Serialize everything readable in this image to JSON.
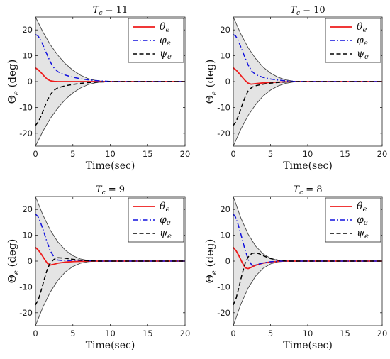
{
  "chart_data": [
    {
      "type": "line",
      "title": "T_c = 11",
      "title_var": "T",
      "title_sub": "c",
      "title_rest": "= 11",
      "xlabel": "Time(sec)",
      "ylabel": "Θe (deg)",
      "ylabel_main": "Θ",
      "ylabel_sub": "e",
      "ylabel_unit": "(deg)",
      "xlim": [
        0,
        20
      ],
      "ylim": [
        -25,
        25
      ],
      "xticks": [
        "0",
        "5",
        "10",
        "15",
        "20"
      ],
      "yticks": [
        "20",
        "10",
        "0",
        "-10",
        "-20"
      ],
      "envelope": {
        "upper": [
          [
            0,
            25
          ],
          [
            1,
            19.2
          ],
          [
            2,
            14.2
          ],
          [
            3,
            10.2
          ],
          [
            4,
            6.9
          ],
          [
            5,
            4.4
          ],
          [
            6,
            2.5
          ],
          [
            7,
            1.2
          ],
          [
            8,
            0.45
          ],
          [
            9,
            0.1
          ],
          [
            10,
            0.01
          ],
          [
            11,
            0
          ],
          [
            20,
            0
          ]
        ]
      },
      "legend": {
        "placement": "top-right",
        "entries": [
          "θe",
          "φe",
          "ψe"
        ]
      },
      "series": [
        {
          "name": "θe",
          "color": "#ee1c1c",
          "dash": "solid",
          "points": [
            [
              0,
              5.3
            ],
            [
              0.4,
              4.5
            ],
            [
              0.8,
              3.3
            ],
            [
              1.2,
              2.0
            ],
            [
              1.6,
              0.9
            ],
            [
              2.0,
              0.3
            ],
            [
              2.5,
              0.05
            ],
            [
              3.0,
              0
            ],
            [
              20,
              0
            ]
          ]
        },
        {
          "name": "φe",
          "color": "#1111dd",
          "dash": "dashdot",
          "points": [
            [
              0,
              18.2
            ],
            [
              0.3,
              17.8
            ],
            [
              0.6,
              16.6
            ],
            [
              1.0,
              14.2
            ],
            [
              1.5,
              10.8
            ],
            [
              2.0,
              7.5
            ],
            [
              2.5,
              5.2
            ],
            [
              3.0,
              3.8
            ],
            [
              4.0,
              2.5
            ],
            [
              5.0,
              1.7
            ],
            [
              6.0,
              1.1
            ],
            [
              7.0,
              0.7
            ],
            [
              8.0,
              0.4
            ],
            [
              9.0,
              0.2
            ],
            [
              10.0,
              0.05
            ],
            [
              11.0,
              0
            ],
            [
              20,
              0
            ]
          ]
        },
        {
          "name": "ψe",
          "color": "#000000",
          "dash": "dashed",
          "points": [
            [
              0,
              -17.0
            ],
            [
              0.4,
              -15.5
            ],
            [
              0.8,
              -13.0
            ],
            [
              1.2,
              -10.0
            ],
            [
              1.6,
              -7.2
            ],
            [
              2.0,
              -5.0
            ],
            [
              2.5,
              -3.3
            ],
            [
              3.0,
              -2.4
            ],
            [
              4.0,
              -1.6
            ],
            [
              5.0,
              -1.1
            ],
            [
              6.0,
              -0.7
            ],
            [
              7.0,
              -0.4
            ],
            [
              8.0,
              -0.25
            ],
            [
              9.0,
              -0.12
            ],
            [
              10.0,
              -0.03
            ],
            [
              11.0,
              0
            ],
            [
              20,
              0
            ]
          ]
        }
      ]
    },
    {
      "type": "line",
      "title": "T_c = 10",
      "title_var": "T",
      "title_sub": "c",
      "title_rest": "= 10",
      "xlabel": "Time(sec)",
      "ylabel": "Θe (deg)",
      "ylabel_main": "Θ",
      "ylabel_sub": "e",
      "ylabel_unit": "(deg)",
      "xlim": [
        0,
        20
      ],
      "ylim": [
        -25,
        25
      ],
      "xticks": [
        "0",
        "5",
        "10",
        "15",
        "20"
      ],
      "yticks": [
        "20",
        "10",
        "0",
        "-10",
        "-20"
      ],
      "envelope": {
        "upper": [
          [
            0,
            25
          ],
          [
            1,
            18.5
          ],
          [
            2,
            13.1
          ],
          [
            3,
            8.9
          ],
          [
            4,
            5.6
          ],
          [
            5,
            3.3
          ],
          [
            6,
            1.7
          ],
          [
            7,
            0.7
          ],
          [
            8,
            0.2
          ],
          [
            9,
            0.03
          ],
          [
            10,
            0
          ],
          [
            20,
            0
          ]
        ]
      },
      "legend": {
        "placement": "top-right",
        "entries": [
          "θe",
          "φe",
          "ψe"
        ]
      },
      "series": [
        {
          "name": "θe",
          "color": "#ee1c1c",
          "dash": "solid",
          "points": [
            [
              0,
              5.3
            ],
            [
              0.4,
              4.4
            ],
            [
              0.8,
              3.1
            ],
            [
              1.2,
              1.7
            ],
            [
              1.6,
              0.4
            ],
            [
              2.0,
              -0.6
            ],
            [
              2.4,
              -1.0
            ],
            [
              3.0,
              -0.8
            ],
            [
              4.0,
              -0.5
            ],
            [
              5.0,
              -0.3
            ],
            [
              6.0,
              -0.2
            ],
            [
              7.0,
              -0.1
            ],
            [
              8.0,
              -0.04
            ],
            [
              9.0,
              0
            ],
            [
              20,
              0
            ]
          ]
        },
        {
          "name": "φe",
          "color": "#1111dd",
          "dash": "dashdot",
          "points": [
            [
              0,
              18.2
            ],
            [
              0.3,
              17.7
            ],
            [
              0.6,
              16.3
            ],
            [
              1.0,
              13.5
            ],
            [
              1.5,
              9.8
            ],
            [
              2.0,
              6.4
            ],
            [
              2.5,
              4.0
            ],
            [
              3.0,
              2.7
            ],
            [
              4.0,
              1.6
            ],
            [
              5.0,
              1.0
            ],
            [
              6.0,
              0.6
            ],
            [
              7.0,
              0.3
            ],
            [
              8.0,
              0.1
            ],
            [
              9.0,
              0.02
            ],
            [
              10.0,
              0
            ],
            [
              20,
              0
            ]
          ]
        },
        {
          "name": "ψe",
          "color": "#000000",
          "dash": "dashed",
          "points": [
            [
              0,
              -17.0
            ],
            [
              0.4,
              -15.3
            ],
            [
              0.8,
              -12.4
            ],
            [
              1.2,
              -9.0
            ],
            [
              1.6,
              -5.9
            ],
            [
              2.0,
              -3.6
            ],
            [
              2.5,
              -2.2
            ],
            [
              3.0,
              -1.6
            ],
            [
              4.0,
              -1.0
            ],
            [
              5.0,
              -0.6
            ],
            [
              6.0,
              -0.35
            ],
            [
              7.0,
              -0.18
            ],
            [
              8.0,
              -0.07
            ],
            [
              9.0,
              -0.01
            ],
            [
              10.0,
              0
            ],
            [
              20,
              0
            ]
          ]
        }
      ]
    },
    {
      "type": "line",
      "title": "T_c = 9",
      "title_var": "T",
      "title_sub": "c",
      "title_rest": "= 9",
      "xlabel": "Time(sec)",
      "ylabel": "Θe (deg)",
      "ylabel_main": "Θ",
      "ylabel_sub": "e",
      "ylabel_unit": "(deg)",
      "xlim": [
        0,
        20
      ],
      "ylim": [
        -25,
        25
      ],
      "xticks": [
        "0",
        "5",
        "10",
        "15",
        "20"
      ],
      "yticks": [
        "20",
        "10",
        "0",
        "-10",
        "-20"
      ],
      "envelope": {
        "upper": [
          [
            0,
            25
          ],
          [
            1,
            17.8
          ],
          [
            2,
            11.9
          ],
          [
            3,
            7.4
          ],
          [
            4,
            4.2
          ],
          [
            5,
            2.1
          ],
          [
            6,
            0.85
          ],
          [
            7,
            0.25
          ],
          [
            8,
            0.03
          ],
          [
            8.5,
            0
          ],
          [
            20,
            0
          ]
        ]
      },
      "legend": {
        "placement": "top-right",
        "entries": [
          "θe",
          "φe",
          "ψe"
        ]
      },
      "series": [
        {
          "name": "θe",
          "color": "#ee1c1c",
          "dash": "solid",
          "points": [
            [
              0,
              5.3
            ],
            [
              0.4,
              4.2
            ],
            [
              0.8,
              2.6
            ],
            [
              1.2,
              0.8
            ],
            [
              1.6,
              -0.9
            ],
            [
              2.0,
              -1.5
            ],
            [
              2.5,
              -1.2
            ],
            [
              3.0,
              -0.8
            ],
            [
              4.0,
              -0.4
            ],
            [
              5.0,
              -0.2
            ],
            [
              6.0,
              -0.1
            ],
            [
              7.0,
              -0.03
            ],
            [
              8.0,
              0
            ],
            [
              20,
              0
            ]
          ]
        },
        {
          "name": "φe",
          "color": "#1111dd",
          "dash": "dashdot",
          "points": [
            [
              0,
              18.2
            ],
            [
              0.3,
              17.4
            ],
            [
              0.6,
              15.6
            ],
            [
              1.0,
              12.3
            ],
            [
              1.5,
              7.8
            ],
            [
              2.0,
              3.9
            ],
            [
              2.5,
              1.5
            ],
            [
              3.0,
              0.4
            ],
            [
              4.0,
              0.1
            ],
            [
              5.0,
              0.3
            ],
            [
              6.0,
              0.3
            ],
            [
              7.0,
              0.15
            ],
            [
              8.0,
              0.04
            ],
            [
              8.5,
              0
            ],
            [
              20,
              0
            ]
          ]
        },
        {
          "name": "ψe",
          "color": "#000000",
          "dash": "dashed",
          "points": [
            [
              0,
              -17.0
            ],
            [
              0.4,
              -14.8
            ],
            [
              0.8,
              -11.0
            ],
            [
              1.2,
              -6.8
            ],
            [
              1.6,
              -3.0
            ],
            [
              2.0,
              -0.6
            ],
            [
              2.5,
              0.7
            ],
            [
              3.0,
              1.3
            ],
            [
              4.0,
              1.1
            ],
            [
              5.0,
              0.7
            ],
            [
              6.0,
              0.35
            ],
            [
              7.0,
              0.12
            ],
            [
              8.0,
              0.02
            ],
            [
              8.5,
              0
            ],
            [
              20,
              0
            ]
          ]
        }
      ]
    },
    {
      "type": "line",
      "title": "T_c = 8",
      "title_var": "T",
      "title_sub": "c",
      "title_rest": "= 8",
      "xlabel": "Time(sec)",
      "ylabel": "Θe (deg)",
      "ylabel_main": "Θ",
      "ylabel_sub": "e",
      "ylabel_unit": "(deg)",
      "xlim": [
        0,
        20
      ],
      "ylim": [
        -25,
        25
      ],
      "xticks": [
        "0",
        "5",
        "10",
        "15",
        "20"
      ],
      "yticks": [
        "20",
        "10",
        "0",
        "-10",
        "-20"
      ],
      "envelope": {
        "upper": [
          [
            0,
            25
          ],
          [
            1,
            16.8
          ],
          [
            2,
            10.4
          ],
          [
            3,
            5.8
          ],
          [
            4,
            2.8
          ],
          [
            5,
            1.1
          ],
          [
            6,
            0.3
          ],
          [
            7,
            0.03
          ],
          [
            7.5,
            0
          ],
          [
            20,
            0
          ]
        ]
      },
      "legend": {
        "placement": "top-right",
        "entries": [
          "θe",
          "φe",
          "ψe"
        ]
      },
      "series": [
        {
          "name": "θe",
          "color": "#ee1c1c",
          "dash": "solid",
          "points": [
            [
              0,
              5.3
            ],
            [
              0.4,
              3.9
            ],
            [
              0.8,
              1.8
            ],
            [
              1.2,
              -0.6
            ],
            [
              1.6,
              -2.6
            ],
            [
              2.0,
              -2.9
            ],
            [
              2.5,
              -2.3
            ],
            [
              3.0,
              -1.6
            ],
            [
              4.0,
              -0.8
            ],
            [
              5.0,
              -0.35
            ],
            [
              6.0,
              -0.1
            ],
            [
              7.0,
              0
            ],
            [
              20,
              0
            ]
          ]
        },
        {
          "name": "φe",
          "color": "#1111dd",
          "dash": "dashdot",
          "points": [
            [
              0,
              18.2
            ],
            [
              0.3,
              17.0
            ],
            [
              0.6,
              14.6
            ],
            [
              1.0,
              10.6
            ],
            [
              1.5,
              5.2
            ],
            [
              2.0,
              0.6
            ],
            [
              2.5,
              -1.6
            ],
            [
              3.0,
              -1.5
            ],
            [
              4.0,
              -0.7
            ],
            [
              5.0,
              -0.25
            ],
            [
              6.0,
              -0.05
            ],
            [
              7.0,
              0
            ],
            [
              20,
              0
            ]
          ]
        },
        {
          "name": "ψe",
          "color": "#000000",
          "dash": "dashed",
          "points": [
            [
              0,
              -17.0
            ],
            [
              0.4,
              -14.2
            ],
            [
              0.8,
              -9.6
            ],
            [
              1.2,
              -4.8
            ],
            [
              1.6,
              -0.8
            ],
            [
              2.0,
              1.6
            ],
            [
              2.5,
              3.0
            ],
            [
              3.0,
              3.2
            ],
            [
              3.5,
              2.8
            ],
            [
              4.0,
              2.1
            ],
            [
              5.0,
              1.0
            ],
            [
              6.0,
              0.35
            ],
            [
              7.0,
              0.05
            ],
            [
              7.5,
              0
            ],
            [
              20,
              0
            ]
          ]
        }
      ]
    }
  ]
}
